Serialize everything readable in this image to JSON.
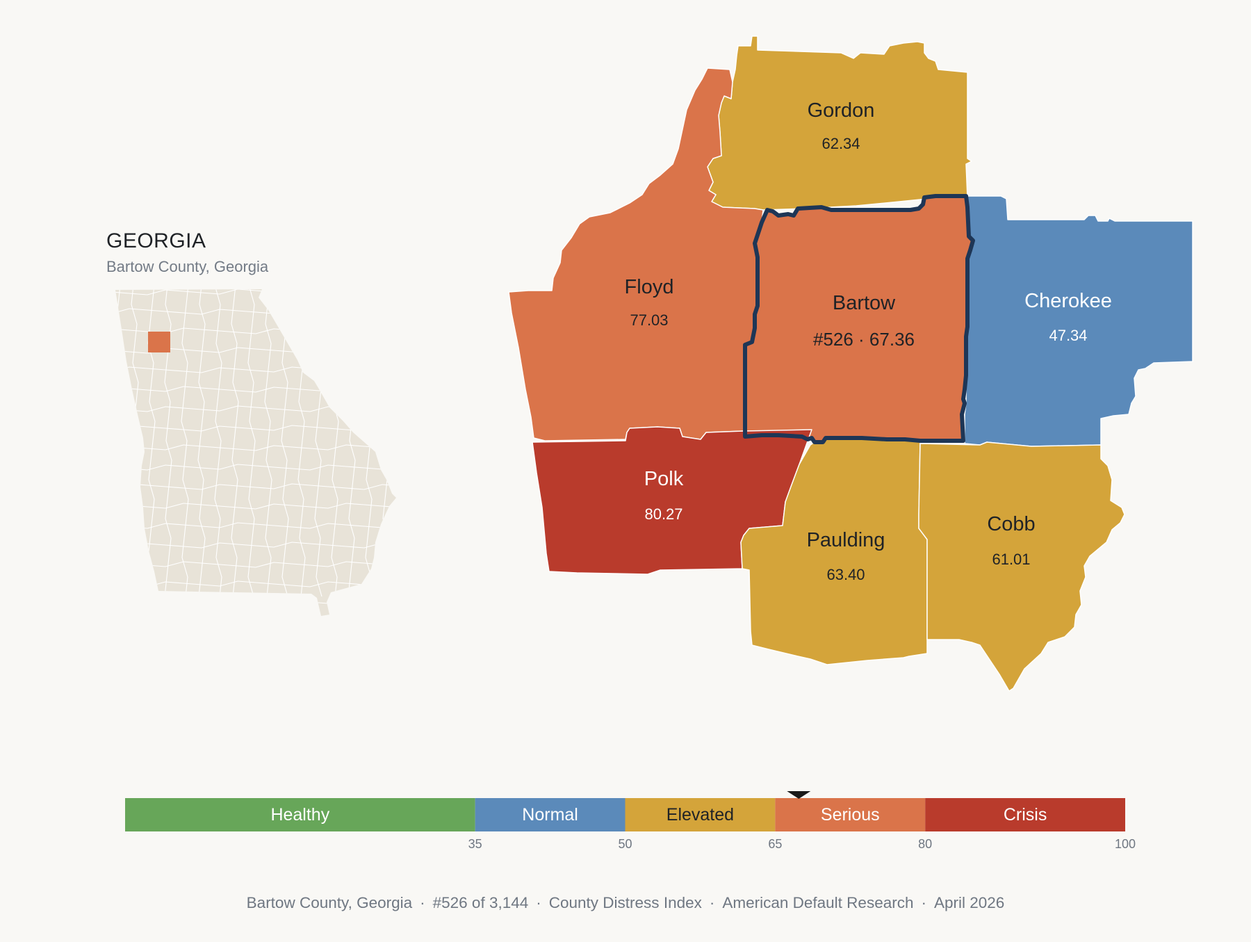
{
  "inset": {
    "state_title": "GEORGIA",
    "state_subtitle": "Bartow County, Georgia",
    "state_fill": "#e8e3d8",
    "highlight_fill": "#da744a"
  },
  "map": {
    "counties": [
      {
        "name": "Gordon",
        "value": "62.34",
        "category": "Elevated",
        "color": "#d4a43a"
      },
      {
        "name": "Floyd",
        "value": "77.03",
        "category": "Serious",
        "color": "#da744a"
      },
      {
        "name": "Bartow",
        "value": "#526 · 67.36",
        "category": "Serious",
        "color": "#da744a",
        "selected": true,
        "outline": "#1e3656"
      },
      {
        "name": "Cherokee",
        "value": "47.34",
        "category": "Normal",
        "color": "#5b8aba"
      },
      {
        "name": "Polk",
        "value": "80.27",
        "category": "Crisis",
        "color": "#b93b2c"
      },
      {
        "name": "Paulding",
        "value": "63.40",
        "category": "Elevated",
        "color": "#d4a43a"
      },
      {
        "name": "Cobb",
        "value": "61.01",
        "category": "Elevated",
        "color": "#d4a43a"
      }
    ]
  },
  "legend": {
    "segments": [
      {
        "label": "Healthy",
        "from": 0,
        "to": 35,
        "color": "#67a659"
      },
      {
        "label": "Normal",
        "from": 35,
        "to": 50,
        "color": "#5b8aba"
      },
      {
        "label": "Elevated",
        "from": 50,
        "to": 65,
        "color": "#d4a43a"
      },
      {
        "label": "Serious",
        "from": 65,
        "to": 80,
        "color": "#da744a"
      },
      {
        "label": "Crisis",
        "from": 80,
        "to": 100,
        "color": "#b93b2c"
      }
    ],
    "ticks": [
      "35",
      "50",
      "65",
      "80",
      "100"
    ],
    "marker_value": 67.36
  },
  "footer": {
    "county": "Bartow County, Georgia",
    "rank": "#526 of 3,144",
    "index": "County Distress Index",
    "source": "American Default Research",
    "date": "April 2026"
  }
}
